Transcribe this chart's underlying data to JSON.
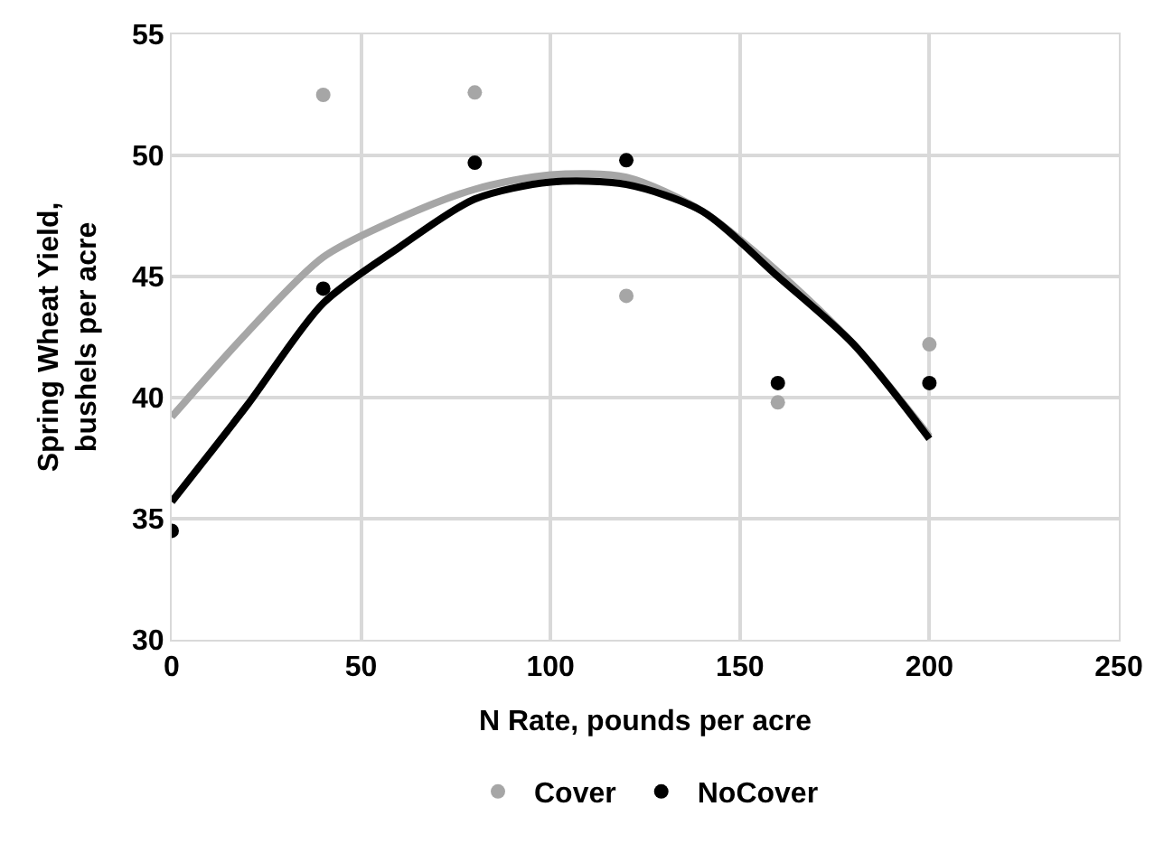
{
  "chart_data": {
    "type": "scatter",
    "xlabel": "N Rate, pounds per acre",
    "ylabel": "Spring Wheat Yield,\nbushels per acre",
    "xlim": [
      0,
      250
    ],
    "xticks": [
      0,
      50,
      100,
      150,
      200,
      250
    ],
    "ylim": [
      30,
      55
    ],
    "yticks": [
      30,
      35,
      40,
      45,
      50,
      55
    ],
    "grid": true,
    "legend": "bottom",
    "marker": "circle",
    "series": [
      {
        "type": "line",
        "color": "#a6a6a6",
        "marker": "none",
        "x": [
          0,
          20,
          40,
          60,
          80,
          100,
          120,
          140,
          160,
          180,
          200
        ],
        "values": [
          39.2,
          42.7,
          45.8,
          47.4,
          48.6,
          49.2,
          49.1,
          47.7,
          45.2,
          42.2,
          38.4
        ]
      },
      {
        "type": "line",
        "color": "#000000",
        "marker": "none",
        "x": [
          0,
          20,
          40,
          60,
          80,
          100,
          120,
          140,
          160,
          180,
          200
        ],
        "values": [
          35.7,
          39.7,
          43.9,
          46.2,
          48.2,
          48.9,
          48.8,
          47.7,
          45.0,
          42.2,
          38.3
        ]
      },
      {
        "name": "Cover",
        "color": "#a6a6a6",
        "x": [
          40,
          80,
          120,
          160,
          200
        ],
        "values": [
          52.5,
          52.6,
          44.2,
          39.8,
          42.2
        ]
      },
      {
        "name": "NoCover",
        "color": "#000000",
        "x": [
          0,
          40,
          80,
          120,
          160,
          200
        ],
        "values": [
          34.5,
          44.5,
          49.7,
          49.8,
          40.6,
          40.6
        ]
      }
    ]
  }
}
